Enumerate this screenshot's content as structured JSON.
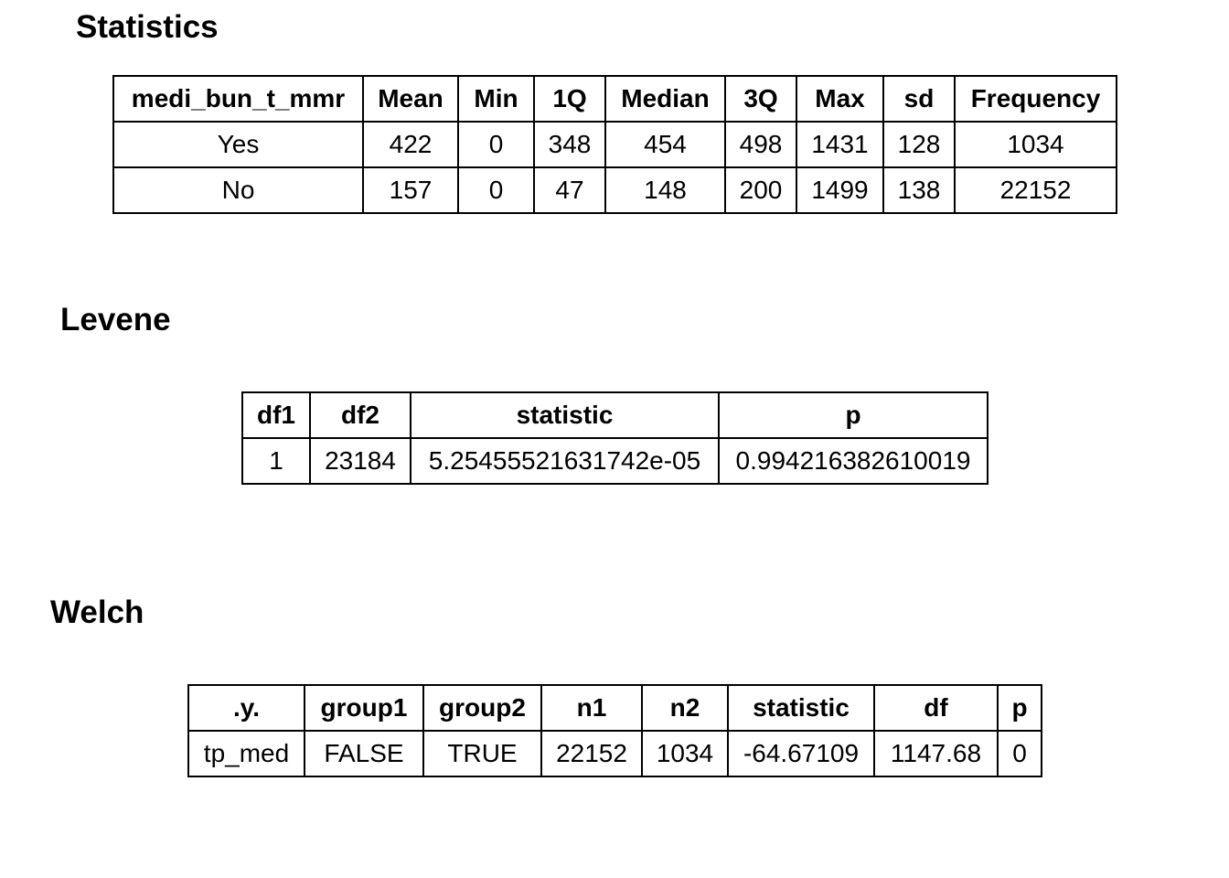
{
  "sections": [
    {
      "title": "Statistics",
      "header": [
        "medi_bun_t_mmr",
        "Mean",
        "Min",
        "1Q",
        "Median",
        "3Q",
        "Max",
        "sd",
        "Frequency"
      ],
      "rows": [
        [
          "Yes",
          "422",
          "0",
          "348",
          "454",
          "498",
          "1431",
          "128",
          "1034"
        ],
        [
          "No",
          "157",
          "0",
          "47",
          "148",
          "200",
          "1499",
          "138",
          "22152"
        ]
      ]
    },
    {
      "title": "Levene",
      "header": [
        "df1",
        "df2",
        "statistic",
        "p"
      ],
      "rows": [
        [
          "1",
          "23184",
          "5.25455521631742e-05",
          "0.994216382610019"
        ]
      ]
    },
    {
      "title": "Welch",
      "header": [
        ".y.",
        "group1",
        "group2",
        "n1",
        "n2",
        "statistic",
        "df",
        "p"
      ],
      "rows": [
        [
          "tp_med",
          "FALSE",
          "TRUE",
          "22152",
          "1034",
          "-64.67109",
          "1147.68",
          "0"
        ]
      ]
    }
  ]
}
